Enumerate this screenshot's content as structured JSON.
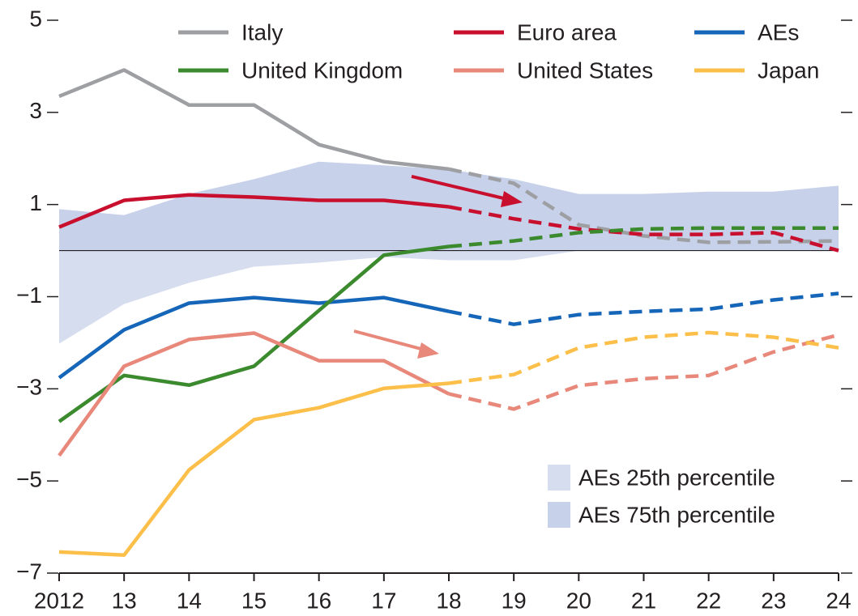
{
  "chart_data": {
    "type": "line",
    "categories": [
      "2012",
      "13",
      "14",
      "15",
      "16",
      "17",
      "18",
      "19",
      "20",
      "21",
      "22",
      "23",
      "24"
    ],
    "forecast_from": "18",
    "ylim": [
      -7,
      5
    ],
    "yticks": [
      5,
      3,
      1,
      {
        "value": -1,
        "label": "−1"
      },
      {
        "value": -3,
        "label": "−3"
      },
      {
        "value": -5,
        "label": "−5"
      },
      {
        "value": -7,
        "label": "−7"
      }
    ],
    "bands": [
      {
        "name": "AEs 25th percentile",
        "color": "#d6ddef",
        "values": [
          -2.02,
          -1.16,
          -0.7,
          -0.35,
          -0.26,
          -0.14,
          -0.21,
          -0.21,
          0,
          0,
          0,
          0,
          0
        ]
      },
      {
        "name": "AEs 75th percentile",
        "color": "#c7d1ea",
        "values": [
          0.9,
          0.77,
          1.23,
          1.55,
          1.93,
          1.85,
          1.76,
          1.55,
          1.23,
          1.23,
          1.28,
          1.28,
          1.41
        ]
      }
    ],
    "series": [
      {
        "name": "Italy",
        "color": "#9d9fa2",
        "values": [
          3.35,
          3.92,
          3.16,
          3.16,
          2.3,
          1.93,
          1.77,
          1.46,
          0.56,
          0.32,
          0.18,
          0.19,
          0.21
        ]
      },
      {
        "name": "Euro area",
        "color": "#c8102e",
        "values": [
          0.51,
          1.09,
          1.21,
          1.16,
          1.09,
          1.09,
          0.95,
          0.69,
          0.47,
          0.35,
          0.35,
          0.39,
          0
        ]
      },
      {
        "name": "AEs",
        "color": "#1565b8",
        "values": [
          -2.76,
          -1.72,
          -1.14,
          -1.02,
          -1.14,
          -1.02,
          -1.32,
          -1.6,
          -1.39,
          -1.32,
          -1.27,
          -1.07,
          -0.93
        ]
      },
      {
        "name": "United Kingdom",
        "color": "#3b8a2e",
        "values": [
          -3.71,
          -2.71,
          -2.92,
          -2.51,
          -1.3,
          -0.1,
          0.09,
          0.21,
          0.39,
          0.47,
          0.49,
          0.49,
          0.49
        ]
      },
      {
        "name": "United States",
        "color": "#e8887a",
        "values": [
          -4.45,
          -2.51,
          -1.93,
          -1.79,
          -2.39,
          -2.39,
          -3.11,
          -3.44,
          -2.93,
          -2.78,
          -2.71,
          -2.2,
          -1.83
        ]
      },
      {
        "name": "Japan",
        "color": "#fbbf4a",
        "values": [
          -6.54,
          -6.61,
          -4.76,
          -3.67,
          -3.41,
          -2.99,
          -2.88,
          -2.69,
          -2.11,
          -1.88,
          -1.78,
          -1.88,
          -2.11
        ]
      }
    ]
  }
}
